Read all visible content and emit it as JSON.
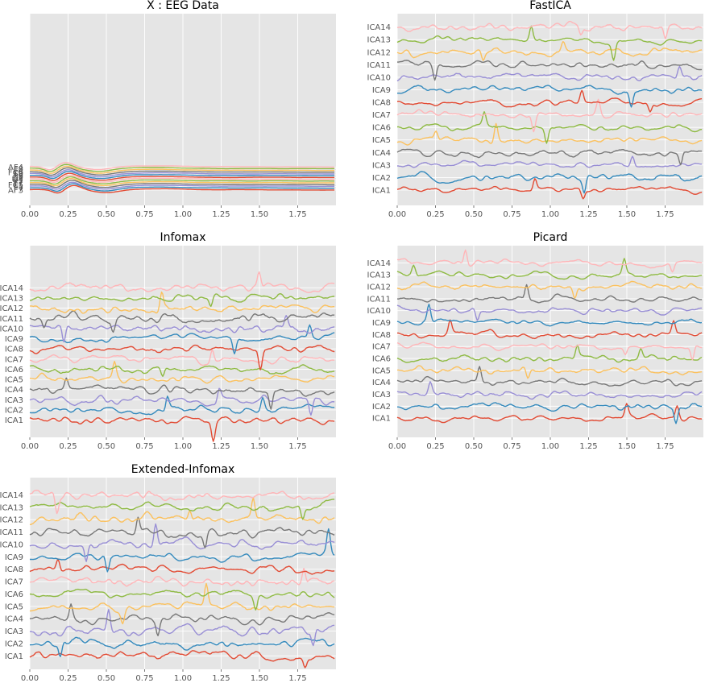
{
  "figure": {
    "background": "#ffffff"
  },
  "style": {
    "plot_background": "#e5e5e5",
    "grid_color": "#ffffff",
    "tick_label_color": "#555555",
    "palette": [
      "#E24A33",
      "#348ABD",
      "#988ED5",
      "#777777",
      "#FBC15E",
      "#8EBA42",
      "#FFB5B8"
    ]
  },
  "chart_data": [
    {
      "type": "line",
      "title": "X : EEG Data",
      "xlabel": "",
      "ylabel": "",
      "xlim": [
        0.0,
        2.0
      ],
      "xticks": [
        "0.00",
        "0.25",
        "0.50",
        "0.75",
        "1.00",
        "1.25",
        "1.50",
        "1.75"
      ],
      "channel_labels_bottom_to_top": [
        "AF3",
        "F7",
        "F3",
        "FC5",
        "T7",
        "P7",
        "O1",
        "O2",
        "P8",
        "T8",
        "FC6",
        "F4",
        "F8",
        "AF4"
      ],
      "grid": true,
      "legend": "none",
      "signal": "shared evoked waveform across channels: dip near 0.15 s, peak near 0.25 s, trough near 0.47 s, broad hump near 0.8 s"
    },
    {
      "type": "line",
      "title": "FastICA",
      "xlabel": "",
      "ylabel": "",
      "xlim": [
        0.0,
        2.0
      ],
      "xticks": [
        "0.00",
        "0.25",
        "0.50",
        "0.75",
        "1.00",
        "1.25",
        "1.50",
        "1.75"
      ],
      "channel_labels_bottom_to_top": [
        "ICA1",
        "ICA2",
        "ICA3",
        "ICA4",
        "ICA5",
        "ICA6",
        "ICA7",
        "ICA8",
        "ICA9",
        "ICA10",
        "ICA11",
        "ICA12",
        "ICA13",
        "ICA14"
      ],
      "grid": true,
      "legend": "none"
    },
    {
      "type": "line",
      "title": "Infomax",
      "xlabel": "",
      "ylabel": "",
      "xlim": [
        0.0,
        2.0
      ],
      "xticks": [
        "0.00",
        "0.25",
        "0.50",
        "0.75",
        "1.00",
        "1.25",
        "1.50",
        "1.75"
      ],
      "channel_labels_bottom_to_top": [
        "ICA1",
        "ICA2",
        "ICA3",
        "ICA4",
        "ICA5",
        "ICA6",
        "ICA7",
        "ICA8",
        "ICA9",
        "ICA10",
        "ICA11",
        "ICA12",
        "ICA13",
        "ICA14"
      ],
      "grid": true,
      "legend": "none"
    },
    {
      "type": "line",
      "title": "Picard",
      "xlabel": "",
      "ylabel": "",
      "xlim": [
        0.0,
        2.0
      ],
      "xticks": [
        "0.00",
        "0.25",
        "0.50",
        "0.75",
        "1.00",
        "1.25",
        "1.50",
        "1.75"
      ],
      "channel_labels_bottom_to_top": [
        "ICA1",
        "ICA2",
        "ICA3",
        "ICA4",
        "ICA5",
        "ICA6",
        "ICA7",
        "ICA8",
        "ICA9",
        "ICA10",
        "ICA11",
        "ICA12",
        "ICA13",
        "ICA14"
      ],
      "grid": true,
      "legend": "none"
    },
    {
      "type": "line",
      "title": "Extended-Infomax",
      "xlabel": "",
      "ylabel": "",
      "xlim": [
        0.0,
        2.0
      ],
      "xticks": [
        "0.00",
        "0.25",
        "0.50",
        "0.75",
        "1.00",
        "1.25",
        "1.50",
        "1.75"
      ],
      "channel_labels_bottom_to_top": [
        "ICA1",
        "ICA2",
        "ICA3",
        "ICA4",
        "ICA5",
        "ICA6",
        "ICA7",
        "ICA8",
        "ICA9",
        "ICA10",
        "ICA11",
        "ICA12",
        "ICA13",
        "ICA14"
      ],
      "grid": true,
      "legend": "none"
    }
  ]
}
